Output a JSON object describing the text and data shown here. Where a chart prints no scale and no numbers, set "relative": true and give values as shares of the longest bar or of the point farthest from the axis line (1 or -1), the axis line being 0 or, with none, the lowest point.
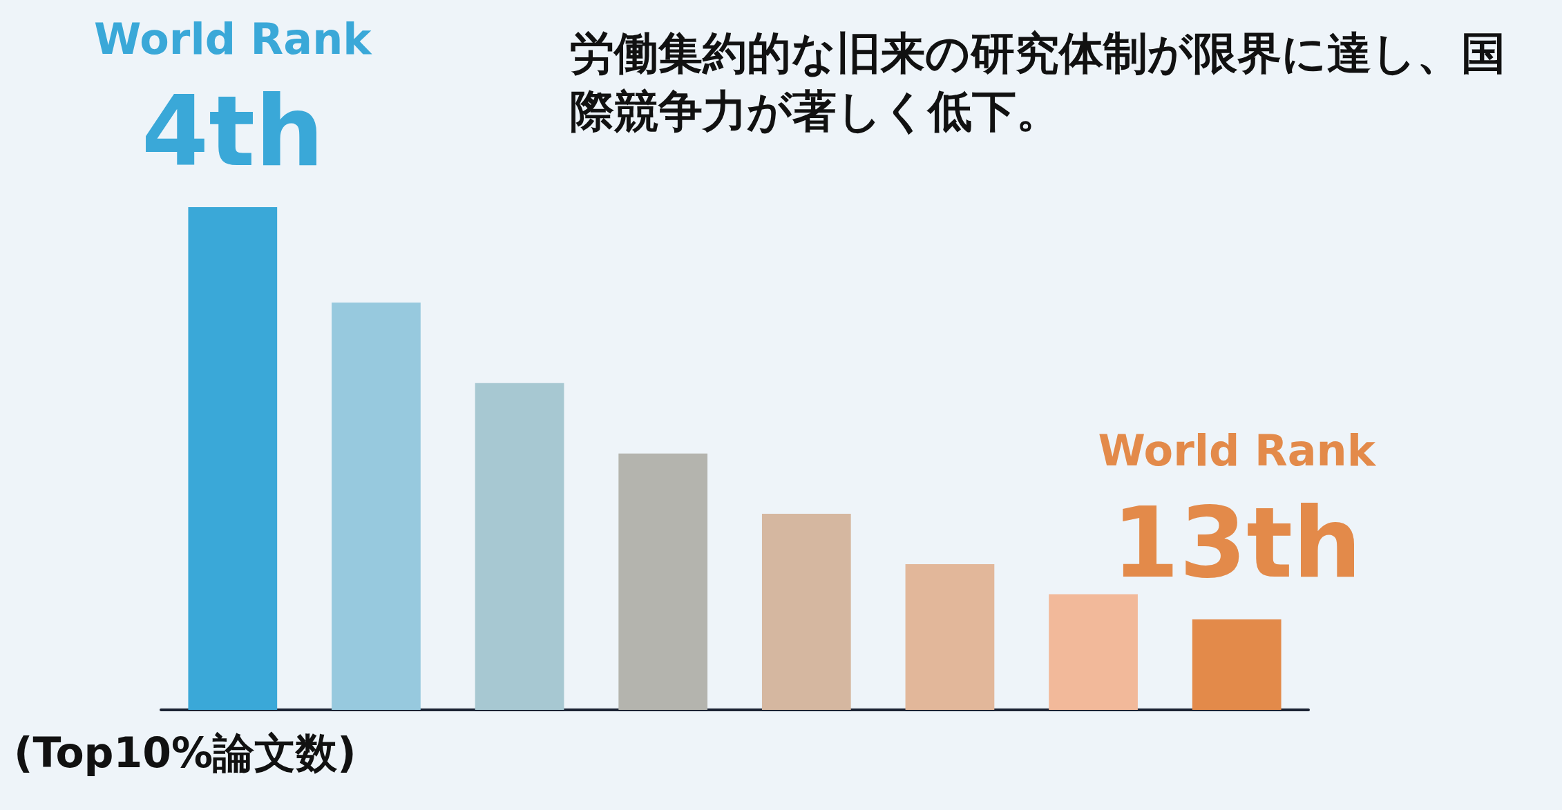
{
  "chart_data": {
    "type": "bar",
    "relative": true,
    "title": "労働集約的な旧来の研究体制が限界に達し、国際競争力が著しく低下。",
    "xlabel": "(Top10%論文数)",
    "categories": [
      null,
      null,
      null,
      null,
      null,
      null,
      null,
      null
    ],
    "values": [
      1,
      0.81,
      0.65,
      0.51,
      0.39,
      0.29,
      0.23,
      0.18
    ],
    "colors": [
      "#3aa8d8",
      "#97c9de",
      "#a7c8d2",
      "#b4b4ae",
      "#d5b7a0",
      "#e2b79a",
      "#f2b99a",
      "#e38a4a"
    ],
    "annotations": [
      "World Rank",
      "4th",
      "World Rank",
      "13th"
    ]
  }
}
